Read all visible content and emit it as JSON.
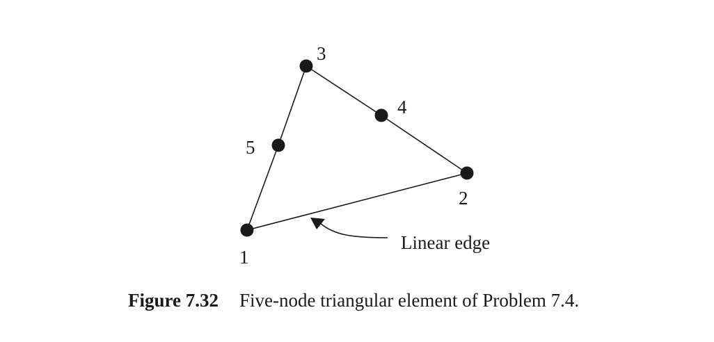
{
  "diagram": {
    "nodes": [
      {
        "id": "1",
        "label": "1"
      },
      {
        "id": "2",
        "label": "2"
      },
      {
        "id": "3",
        "label": "3"
      },
      {
        "id": "4",
        "label": "4"
      },
      {
        "id": "5",
        "label": "5"
      }
    ],
    "edge_annotation": "Linear edge",
    "colors": {
      "stroke": "#1a1a1a",
      "node_fill": "#1a1a1a",
      "text": "#1a1a1a"
    }
  },
  "caption": {
    "number": "Figure 7.32",
    "text": "Five-node triangular element of Problem 7.4."
  }
}
